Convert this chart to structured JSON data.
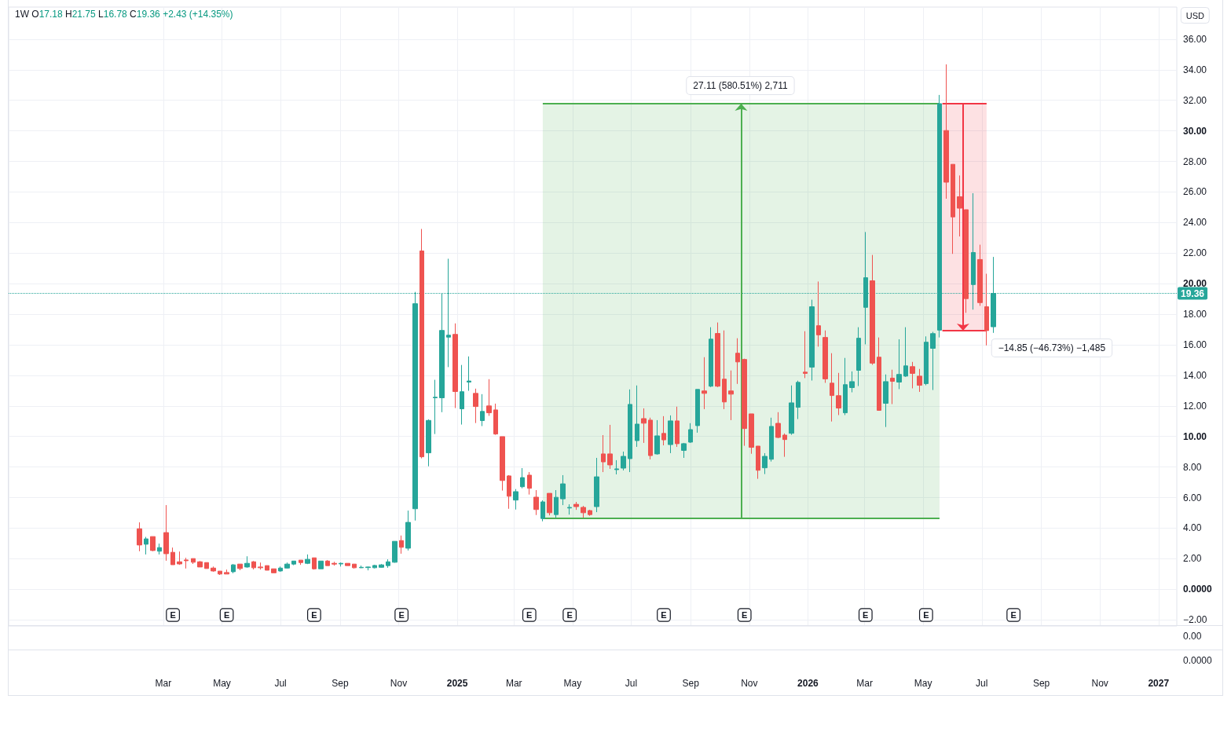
{
  "chart_data": [
    {
      "type": "candlestick",
      "title": "1W O17.18 H21.75 L16.78 C19.36 +2.43 (+14.35%)",
      "ylabel": "USD",
      "x": [
        "2024-02-05",
        "2024-02-12",
        "2024-02-19",
        "2024-02-26",
        "2024-03-04",
        "2024-03-11",
        "2024-03-18",
        "2024-03-25",
        "2024-04-01",
        "2024-04-08",
        "2024-04-15",
        "2024-04-22",
        "2024-04-29",
        "2024-05-06",
        "2024-05-13",
        "2024-05-20",
        "2024-05-27",
        "2024-06-03",
        "2024-06-10",
        "2024-06-17",
        "2024-06-24",
        "2024-07-01",
        "2024-07-08",
        "2024-07-15",
        "2024-07-22",
        "2024-07-29",
        "2024-08-05",
        "2024-08-12",
        "2024-08-19",
        "2024-08-26",
        "2024-09-02",
        "2024-09-09",
        "2024-09-16",
        "2024-09-23",
        "2024-09-30",
        "2024-10-07",
        "2024-10-14",
        "2024-10-21",
        "2024-10-28",
        "2024-11-04",
        "2024-11-11",
        "2024-11-18",
        "2024-11-25",
        "2024-12-02",
        "2024-12-09",
        "2024-12-16",
        "2024-12-23",
        "2024-12-30",
        "2025-01-06",
        "2025-01-13",
        "2025-01-20",
        "2025-01-27",
        "2025-02-03",
        "2025-02-10",
        "2025-02-17",
        "2025-02-24",
        "2025-03-03",
        "2025-03-10",
        "2025-03-17",
        "2025-03-24",
        "2025-03-31",
        "2025-04-07",
        "2025-04-14",
        "2025-04-21",
        "2025-04-28",
        "2025-05-05",
        "2025-05-12",
        "2025-05-19",
        "2025-05-26",
        "2025-06-02",
        "2025-06-09",
        "2025-06-16",
        "2025-06-23",
        "2025-06-30",
        "2025-07-07",
        "2025-07-14",
        "2025-07-21",
        "2025-07-28",
        "2025-08-04",
        "2025-08-11",
        "2025-08-18",
        "2025-08-25",
        "2025-09-01",
        "2025-09-08",
        "2025-09-15",
        "2025-09-22",
        "2025-09-29",
        "2025-10-06",
        "2025-10-13",
        "2025-10-20",
        "2025-10-27",
        "2025-11-03",
        "2025-11-10",
        "2025-11-17",
        "2025-11-24",
        "2025-12-01",
        "2025-12-08",
        "2025-12-15",
        "2025-12-22",
        "2025-12-29",
        "2026-01-05",
        "2026-01-12",
        "2026-01-19",
        "2026-01-26",
        "2026-02-02",
        "2026-02-09",
        "2026-02-16",
        "2026-02-23",
        "2026-03-02",
        "2026-03-09",
        "2026-03-16",
        "2026-03-23",
        "2026-03-30",
        "2026-04-06",
        "2026-04-13",
        "2026-04-20",
        "2026-04-27",
        "2026-05-04",
        "2026-05-11",
        "2026-05-18",
        "2026-05-25",
        "2026-06-01",
        "2026-06-08",
        "2026-06-15",
        "2026-06-22",
        "2026-06-29",
        "2026-07-06",
        "2026-07-13"
      ],
      "ohlc": [
        [
          3.96,
          4.38,
          2.49,
          2.9
        ],
        [
          2.95,
          3.43,
          2.28,
          3.3
        ],
        [
          3.45,
          3.45,
          2.49,
          2.54
        ],
        [
          2.49,
          2.99,
          2.28,
          2.73
        ],
        [
          3.71,
          5.51,
          1.87,
          2.33
        ],
        [
          2.42,
          2.73,
          1.61,
          1.61
        ],
        [
          1.8,
          2.47,
          1.6,
          1.66
        ],
        [
          1.92,
          2.06,
          1.36,
          1.87
        ],
        [
          2.01,
          2.01,
          1.66,
          1.77
        ],
        [
          1.8,
          1.85,
          1.46,
          1.46
        ],
        [
          1.75,
          1.75,
          1.36,
          1.36
        ],
        [
          1.39,
          1.49,
          1.15,
          1.2
        ],
        [
          1.19,
          1.19,
          0.94,
          1.0
        ],
        [
          1.1,
          1.29,
          1.0,
          1.0
        ],
        [
          1.15,
          1.65,
          1.05,
          1.6
        ],
        [
          1.65,
          1.65,
          1.25,
          1.36
        ],
        [
          1.46,
          2.16,
          1.41,
          1.7
        ],
        [
          1.8,
          1.85,
          1.3,
          1.41
        ],
        [
          1.46,
          1.75,
          1.29,
          1.41
        ],
        [
          1.55,
          1.55,
          1.25,
          1.25
        ],
        [
          1.34,
          1.34,
          1.08,
          1.08
        ],
        [
          1.2,
          1.49,
          1.15,
          1.39
        ],
        [
          1.39,
          1.75,
          1.36,
          1.65
        ],
        [
          1.65,
          1.85,
          1.58,
          1.85
        ],
        [
          1.91,
          1.91,
          1.6,
          1.75
        ],
        [
          1.7,
          2.28,
          1.65,
          1.96
        ],
        [
          2.06,
          2.06,
          1.29,
          1.34
        ],
        [
          1.34,
          1.85,
          1.34,
          1.85
        ],
        [
          1.85,
          1.91,
          1.55,
          1.55
        ],
        [
          1.7,
          1.8,
          1.55,
          1.65
        ],
        [
          1.66,
          1.75,
          1.49,
          1.7
        ],
        [
          1.7,
          1.7,
          1.55,
          1.55
        ],
        [
          1.65,
          1.65,
          1.36,
          1.41
        ],
        [
          1.41,
          1.55,
          1.39,
          1.44
        ],
        [
          1.42,
          1.49,
          1.24,
          1.46
        ],
        [
          1.41,
          1.6,
          1.37,
          1.56
        ],
        [
          1.44,
          1.65,
          1.41,
          1.6
        ],
        [
          1.55,
          1.96,
          1.41,
          1.8
        ],
        [
          1.77,
          3.14,
          1.74,
          3.14
        ],
        [
          3.19,
          3.52,
          2.33,
          2.75
        ],
        [
          2.69,
          5.15,
          2.54,
          4.38
        ],
        [
          5.27,
          19.46,
          4.5,
          18.69
        ],
        [
          22.14,
          23.58,
          8.57,
          8.67
        ],
        [
          8.93,
          11.12,
          8.05,
          11.05
        ],
        [
          12.53,
          13.71,
          10.16,
          12.57
        ],
        [
          12.53,
          19.34,
          11.59,
          16.94
        ],
        [
          16.5,
          21.63,
          14.54,
          16.63
        ],
        [
          16.68,
          17.4,
          11.86,
          12.94
        ],
        [
          11.81,
          14.68,
          10.78,
          12.93
        ],
        [
          13.56,
          15.24,
          12.99,
          13.63
        ],
        [
          12.82,
          13.13,
          10.88,
          11.96
        ],
        [
          11.04,
          12.77,
          10.68,
          11.64
        ],
        [
          12.0,
          13.75,
          11.35,
          11.55
        ],
        [
          11.74,
          12.15,
          10.11,
          10.16
        ],
        [
          9.99,
          9.99,
          6.46,
          7.12
        ],
        [
          7.42,
          7.47,
          5.27,
          6.09
        ],
        [
          5.84,
          6.56,
          5.22,
          6.39
        ],
        [
          6.71,
          7.93,
          6.61,
          7.31
        ],
        [
          7.47,
          7.67,
          6.2,
          6.61
        ],
        [
          6.03,
          6.49,
          4.86,
          5.22
        ],
        [
          4.63,
          5.82,
          4.45,
          5.72
        ],
        [
          6.28,
          6.28,
          4.84,
          5.01
        ],
        [
          4.89,
          6.49,
          4.67,
          6.02
        ],
        [
          5.92,
          7.47,
          5.51,
          6.9
        ],
        [
          5.32,
          5.56,
          4.89,
          5.36
        ],
        [
          5.56,
          5.72,
          5.2,
          5.41
        ],
        [
          5.36,
          5.46,
          4.69,
          5.01
        ],
        [
          5.15,
          5.2,
          4.81,
          4.89
        ],
        [
          5.41,
          8.6,
          5.05,
          7.36
        ],
        [
          8.86,
          10.09,
          7.67,
          8.34
        ],
        [
          8.86,
          10.76,
          7.88,
          8.14
        ],
        [
          7.83,
          8.45,
          7.52,
          7.88
        ],
        [
          7.93,
          9.01,
          7.78,
          8.7
        ],
        [
          8.55,
          13.08,
          7.67,
          12.1
        ],
        [
          9.73,
          13.34,
          9.32,
          10.81
        ],
        [
          11.17,
          11.84,
          9.58,
          10.87
        ],
        [
          11.07,
          11.23,
          8.5,
          8.75
        ],
        [
          8.86,
          11.07,
          8.81,
          10.04
        ],
        [
          10.2,
          11.33,
          9.42,
          9.78
        ],
        [
          9.47,
          11.38,
          8.91,
          11.02
        ],
        [
          11.02,
          11.95,
          9.32,
          9.53
        ],
        [
          9.09,
          9.58,
          8.6,
          9.53
        ],
        [
          9.63,
          10.87,
          9.58,
          10.45
        ],
        [
          10.71,
          13.08,
          10.25,
          13.08
        ],
        [
          12.98,
          15.19,
          11.79,
          12.82
        ],
        [
          13.29,
          17.15,
          13.23,
          16.37
        ],
        [
          16.74,
          17.46,
          13.23,
          13.29
        ],
        [
          13.75,
          16.94,
          11.79,
          12.26
        ],
        [
          12.98,
          14.32,
          11.07,
          12.77
        ],
        [
          15.45,
          16.43,
          13.44,
          14.88
        ],
        [
          15.04,
          15.09,
          9.39,
          10.52
        ],
        [
          11.48,
          11.48,
          8.87,
          9.29
        ],
        [
          9.37,
          9.37,
          7.23,
          7.79
        ],
        [
          7.95,
          8.91,
          7.54,
          8.7
        ],
        [
          8.51,
          11.23,
          8.36,
          10.66
        ],
        [
          10.86,
          11.59,
          9.89,
          9.94
        ],
        [
          10.09,
          10.2,
          8.67,
          9.8
        ],
        [
          10.21,
          13.34,
          10.11,
          12.2
        ],
        [
          11.91,
          13.65,
          11.14,
          13.54
        ],
        [
          14.21,
          16.89,
          13.82,
          14.13
        ],
        [
          14.54,
          18.95,
          13.66,
          18.49
        ],
        [
          17.25,
          20.14,
          15.88,
          16.65
        ],
        [
          16.48,
          16.94,
          13.51,
          13.77
        ],
        [
          13.49,
          15.45,
          10.98,
          12.68
        ],
        [
          12.67,
          14.16,
          11.4,
          11.86
        ],
        [
          11.55,
          15.14,
          11.4,
          13.39
        ],
        [
          13.2,
          14.26,
          12.89,
          13.59
        ],
        [
          14.33,
          17.15,
          13.3,
          16.43
        ],
        [
          18.45,
          23.38,
          16.03,
          20.39
        ],
        [
          20.19,
          21.88,
          14.69,
          14.8
        ],
        [
          15.19,
          16.48,
          11.71,
          11.71
        ],
        [
          12.17,
          14.06,
          10.62,
          13.59
        ],
        [
          13.82,
          14.37,
          12.12,
          13.61
        ],
        [
          13.56,
          16.36,
          13.1,
          14.06
        ],
        [
          13.95,
          17.15,
          13.9,
          14.62
        ],
        [
          14.57,
          14.88,
          13.15,
          14.13
        ],
        [
          13.95,
          14.42,
          12.92,
          13.35
        ],
        [
          13.46,
          16.55,
          13.35,
          16.17
        ],
        [
          15.77,
          16.85,
          13.04,
          16.73
        ],
        [
          16.96,
          32.35,
          16.48,
          31.78
        ],
        [
          30.02,
          34.35,
          25.56,
          26.64
        ],
        [
          27.81,
          27.81,
          21.95,
          24.37
        ],
        [
          25.69,
          27.08,
          23.09,
          24.94
        ],
        [
          24.84,
          24.84,
          18.09,
          19.02
        ],
        [
          19.94,
          25.92,
          18.3,
          22.04
        ],
        [
          21.58,
          22.55,
          18.55,
          18.76
        ],
        [
          18.49,
          20.65,
          15.96,
          16.93
        ],
        [
          17.18,
          21.75,
          16.78,
          19.36
        ]
      ],
      "series": [
        {
          "type": "line",
          "x": [
            "2026-05-21",
            "2026-07-06"
          ],
          "values": [
            31.78,
            31.78
          ],
          "color": "#f23645"
        },
        {
          "type": "line",
          "x": [
            "2026-05-21",
            "2026-07-06"
          ],
          "values": [
            16.93,
            16.93
          ],
          "color": "#f23645"
        }
      ],
      "xlim": [
        "2023-09-22",
        "2027-01-20"
      ],
      "xticks": [
        {
          "value": "2024-03",
          "label": "Mar"
        },
        {
          "value": "2024-05",
          "label": "May"
        },
        {
          "value": "2024-07",
          "label": "Jul"
        },
        {
          "value": "2024-09",
          "label": "Sep"
        },
        {
          "value": "2024-11",
          "label": "Nov"
        },
        {
          "value": "2025-01",
          "label": "2025"
        },
        {
          "value": "2025-03",
          "label": "Mar"
        },
        {
          "value": "2025-05",
          "label": "May"
        },
        {
          "value": "2025-07",
          "label": "Jul"
        },
        {
          "value": "2025-09",
          "label": "Sep"
        },
        {
          "value": "2025-11",
          "label": "Nov"
        },
        {
          "value": "2026-01",
          "label": "2026"
        },
        {
          "value": "2026-03",
          "label": "Mar"
        },
        {
          "value": "2026-05",
          "label": "May"
        },
        {
          "value": "2026-07",
          "label": "Jul"
        },
        {
          "value": "2026-09",
          "label": "Sep"
        },
        {
          "value": "2026-11",
          "label": "Nov"
        },
        {
          "value": "2027-01",
          "label": "2027"
        }
      ],
      "ylim": [
        -2.4,
        38.1
      ],
      "yticks": [
        {
          "value": -2,
          "label": "−2.00"
        },
        {
          "value": 0,
          "label": "0.0000"
        },
        {
          "value": 2,
          "label": "2.00"
        },
        {
          "value": 4,
          "label": "4.00"
        },
        {
          "value": 6,
          "label": "6.00"
        },
        {
          "value": 8,
          "label": "8.00"
        },
        {
          "value": 10,
          "label": "10.00"
        },
        {
          "value": 12,
          "label": "12.00"
        },
        {
          "value": 14,
          "label": "14.00"
        },
        {
          "value": 16,
          "label": "16.00"
        },
        {
          "value": 18,
          "label": "18.00"
        },
        {
          "value": 20,
          "label": "20.00"
        },
        {
          "value": 22,
          "label": "22.00"
        },
        {
          "value": 24,
          "label": "24.00"
        },
        {
          "value": 26,
          "label": "26.00"
        },
        {
          "value": 28,
          "label": "28.00"
        },
        {
          "value": 30,
          "label": "30.00"
        },
        {
          "value": 32,
          "label": "32.00"
        },
        {
          "value": 34,
          "label": "34.00"
        },
        {
          "value": 36,
          "label": "36.00"
        }
      ],
      "grid": true,
      "ref_lines": [
        {
          "axis": "y",
          "value": 19.36,
          "label": "19.36",
          "color": "#26a69a",
          "line_style": "dotted"
        },
        {
          "axis": "y",
          "value": 4.67,
          "color": "#4caf50"
        },
        {
          "axis": "y",
          "value": 31.78,
          "color": "#4caf50"
        }
      ],
      "bands": [
        {
          "axis": "x",
          "from": "2025-03-31",
          "to": "2026-05-18",
          "label": "27.11 (580.51%) 2,711",
          "color": "#4caf50"
        },
        {
          "axis": "x",
          "from": "2026-05-18",
          "to": "2026-07-06",
          "label": "−14.85 (−46.73%) −1,485",
          "color": "#f23645"
        }
      ],
      "annotations": [
        {
          "text": "E",
          "x": "2024-03-11"
        },
        {
          "text": "E",
          "x": "2024-05-06"
        },
        {
          "text": "E",
          "x": "2024-08-05"
        },
        {
          "text": "E",
          "x": "2024-11-04"
        },
        {
          "text": "E",
          "x": "2025-03-17"
        },
        {
          "text": "E",
          "x": "2025-04-28"
        },
        {
          "text": "E",
          "x": "2025-08-04"
        },
        {
          "text": "E",
          "x": "2025-10-27"
        },
        {
          "text": "E",
          "x": "2026-03-02"
        },
        {
          "text": "E",
          "x": "2026-05-04"
        },
        {
          "text": "E",
          "x": "2026-08-03"
        }
      ]
    },
    {
      "type": "other",
      "annotations": [
        "0.00"
      ]
    },
    {
      "type": "other",
      "annotations": [
        "0.0000"
      ]
    }
  ]
}
